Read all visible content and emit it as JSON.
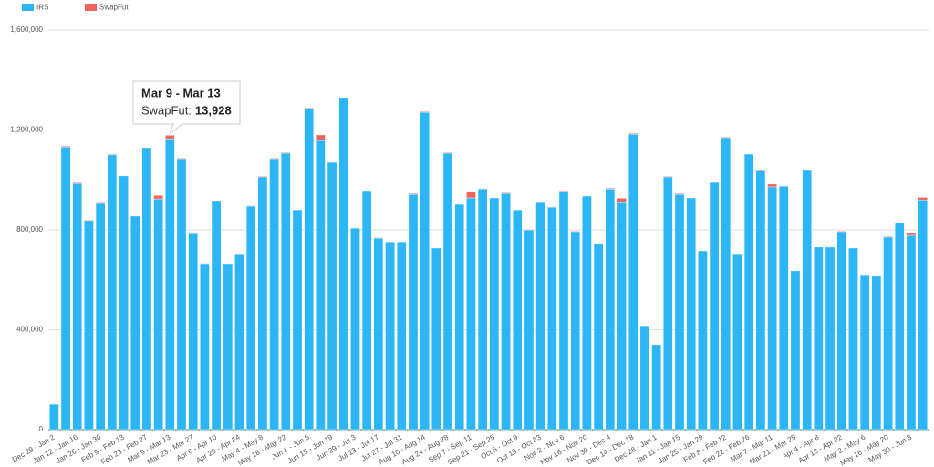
{
  "chart_data": {
    "type": "stacked_bar",
    "categories": [
      "Dec 29 - Jan 2",
      null,
      "Jan 12 - Jan 16",
      null,
      "Jan 26 - Jan 30",
      null,
      "Feb 9 - Feb 13",
      null,
      "Feb 23 - Feb 27",
      null,
      "Mar 9 - Mar 13",
      null,
      "Mar 23 - Mar 27",
      null,
      "Apr 6 - Apr 10",
      null,
      "Apr 20 - Apr 24",
      null,
      "May 4 - May 8",
      null,
      "May 18 - May 22",
      null,
      "Jun 1 - Jun 5",
      null,
      "Jun 15 - Jun 19",
      null,
      "Jun 29 - Jul 3",
      null,
      "Jul 13 - Jul 17",
      null,
      "Jul 27 - Jul 31",
      null,
      "Aug 10 - Aug 14",
      null,
      "Aug 24 - Aug 28",
      null,
      "Sep 7 - Sep 11",
      null,
      "Sep 21 - Sep 25",
      null,
      "Oct 5 - Oct 9",
      null,
      "Oct 19 - Oct 23",
      null,
      "Nov 2 - Nov 6",
      null,
      "Nov 16 - Nov 20",
      null,
      "Nov 30 - Dec 4",
      null,
      "Dec 14 - Dec 18",
      null,
      "Dec 28 - Jan 1",
      null,
      "Jan 11 - Jan 15",
      null,
      "Jan 25 - Jan 29",
      null,
      "Feb 8 - Feb 12",
      null,
      "Feb 22 - Feb 26",
      null,
      "Mar 7 - Mar 11",
      null,
      "Mar 21 - Mar 25",
      null,
      "Apr 4 - Apr 8",
      null,
      "Apr 18 - Apr 22",
      null,
      "May 2 - May 6",
      null,
      "May 16 - May 20",
      null,
      "May 30 - Jun 3",
      null
    ],
    "series": [
      {
        "name": "IRS",
        "color": "#2db6f5",
        "values": [
          102000,
          1132000,
          986000,
          837000,
          906000,
          1100000,
          1016000,
          855000,
          1129000,
          924000,
          1165000,
          1085000,
          785000,
          665000,
          917000,
          665000,
          701000,
          895000,
          1012000,
          1085000,
          1107000,
          880000,
          1286000,
          1158000,
          1070000,
          1330000,
          807000,
          957000,
          767000,
          752000,
          752000,
          942000,
          1271000,
          727000,
          1107000,
          902000,
          928000,
          964000,
          928000,
          946000,
          880000,
          800000,
          909000,
          891000,
          953000,
          793000,
          935000,
          745000,
          964000,
          909000,
          1183000,
          416000,
          340000,
          1012000,
          942000,
          928000,
          716000,
          990000,
          1169000,
          701000,
          1103000,
          1037000,
          972000,
          975000,
          636000,
          1041000,
          731000,
          731000,
          793000,
          727000,
          617000,
          614000,
          771000,
          829000,
          778000,
          920000
        ]
      },
      {
        "name": "SwapFut",
        "color": "#f0655a",
        "values": [
          0,
          3000,
          3000,
          3000,
          3000,
          3000,
          0,
          0,
          0,
          14000,
          13928,
          3000,
          2000,
          2000,
          0,
          0,
          2000,
          2000,
          3000,
          3000,
          3000,
          0,
          3000,
          22000,
          0,
          0,
          0,
          0,
          2000,
          0,
          0,
          3000,
          3000,
          0,
          3000,
          0,
          25000,
          2000,
          0,
          3000,
          0,
          2000,
          0,
          2000,
          3000,
          3000,
          0,
          0,
          3000,
          18000,
          3000,
          0,
          0,
          3000,
          3000,
          0,
          0,
          3000,
          3000,
          0,
          0,
          3000,
          11000,
          2000,
          0,
          0,
          0,
          2000,
          3000,
          0,
          0,
          0,
          3000,
          0,
          8000,
          10000
        ]
      }
    ],
    "ylim": [
      0,
      1600000
    ],
    "yticks": [
      0,
      {
        "value": 400000,
        "label": "400,000"
      },
      {
        "value": 800000,
        "label": "800,000"
      },
      {
        "value": 1200000,
        "label": "1,200,000"
      },
      {
        "value": 1600000,
        "label": "1,600,000"
      }
    ],
    "grid": true,
    "tooltip": {
      "title": "Mar 9 - Mar 13",
      "label": "SwapFut:",
      "value_label": "13,928"
    }
  }
}
